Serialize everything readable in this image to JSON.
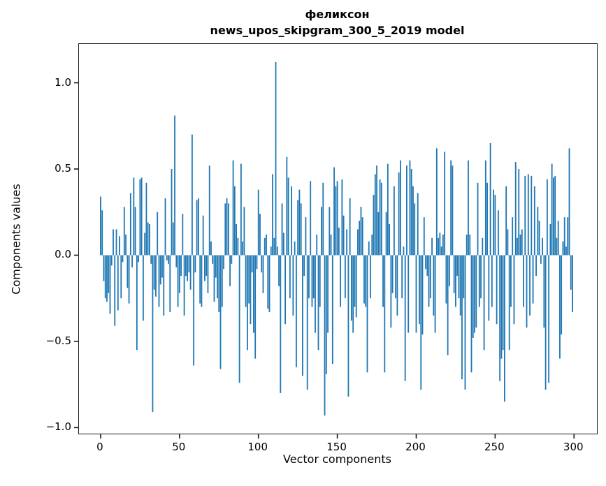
{
  "figure": {
    "background": "#ffffff",
    "frame_color": "#1a1a1a",
    "text_color": "#000000"
  },
  "chart_data": {
    "type": "bar",
    "title": "феликсон",
    "subtitle": "news_upos_skipgram_300_5_2019 model",
    "xlabel": "Vector components",
    "ylabel": "Components values",
    "bar_color": "#1f77b4",
    "grid": false,
    "legend_position": "none",
    "xlim": [
      -13.7,
      314.5
    ],
    "ylim": [
      -1.035,
      1.225
    ],
    "xticks": [
      0,
      50,
      100,
      150,
      200,
      250,
      300
    ],
    "xtick_labels": [
      "0",
      "50",
      "100",
      "150",
      "200",
      "250",
      "300"
    ],
    "yticks": [
      1.0,
      0.5,
      0.0,
      -0.5,
      -1.0
    ],
    "ytick_labels": [
      "1.0",
      "0.5",
      "0.0",
      "−0.5",
      "−1.0"
    ],
    "bar_width_data_units": 0.8,
    "values": [
      0.34,
      0.26,
      -0.15,
      -0.25,
      -0.27,
      -0.22,
      -0.34,
      -0.06,
      0.15,
      -0.41,
      0.15,
      -0.32,
      0.11,
      -0.25,
      -0.04,
      0.28,
      0.12,
      -0.19,
      -0.28,
      0.36,
      -0.07,
      0.45,
      0.28,
      -0.55,
      -0.04,
      0.44,
      0.45,
      -0.38,
      0.13,
      0.42,
      0.19,
      0.18,
      -0.05,
      -0.91,
      -0.2,
      -0.24,
      0.25,
      -0.3,
      -0.17,
      -0.13,
      -0.35,
      0.33,
      -0.03,
      -0.05,
      -0.33,
      0.5,
      0.19,
      0.81,
      -0.07,
      -0.3,
      -0.22,
      -0.12,
      0.24,
      -0.35,
      -0.12,
      -0.15,
      -0.1,
      -0.2,
      0.7,
      -0.64,
      -0.1,
      0.32,
      0.33,
      -0.28,
      -0.3,
      0.23,
      -0.15,
      -0.12,
      -0.22,
      0.52,
      0.08,
      -0.05,
      -0.27,
      -0.13,
      -0.25,
      -0.33,
      -0.66,
      -0.3,
      -0.08,
      0.3,
      0.33,
      0.3,
      -0.18,
      -0.05,
      0.55,
      0.4,
      0.18,
      0.1,
      -0.74,
      0.53,
      0.08,
      0.28,
      -0.3,
      -0.55,
      -0.28,
      -0.4,
      -0.1,
      -0.45,
      -0.6,
      -0.08,
      0.38,
      0.24,
      -0.1,
      -0.22,
      0.1,
      0.12,
      -0.31,
      -0.33,
      0.05,
      0.47,
      0.1,
      1.12,
      0.05,
      -0.18,
      -0.8,
      0.3,
      0.13,
      -0.4,
      0.57,
      0.45,
      -0.25,
      0.4,
      -0.35,
      0.08,
      -0.65,
      0.32,
      0.38,
      0.3,
      -0.7,
      -0.12,
      0.22,
      -0.78,
      -0.25,
      0.43,
      -0.3,
      -0.25,
      -0.45,
      0.12,
      -0.55,
      -0.3,
      0.28,
      0.42,
      -0.93,
      -0.69,
      -0.45,
      0.28,
      0.12,
      -0.63,
      0.51,
      0.4,
      0.43,
      0.16,
      -0.3,
      0.44,
      0.23,
      -0.25,
      0.15,
      -0.82,
      0.33,
      -0.38,
      -0.45,
      -0.3,
      -0.36,
      0.15,
      0.2,
      0.28,
      0.22,
      -0.28,
      -0.3,
      -0.68,
      0.08,
      -0.25,
      0.12,
      0.35,
      0.47,
      0.52,
      0.25,
      0.44,
      0.42,
      -0.3,
      -0.68,
      0.25,
      0.53,
      0.18,
      -0.42,
      -0.22,
      0.4,
      -0.25,
      -0.35,
      0.48,
      0.55,
      -0.25,
      0.05,
      -0.73,
      0.52,
      -0.45,
      0.55,
      0.5,
      0.4,
      0.3,
      -0.45,
      0.36,
      -0.4,
      -0.78,
      -0.46,
      0.22,
      -0.08,
      -0.12,
      -0.3,
      -0.25,
      0.1,
      -0.35,
      -0.45,
      0.62,
      0.1,
      0.13,
      0.05,
      0.12,
      0.6,
      -0.28,
      -0.58,
      -0.18,
      0.55,
      0.52,
      -0.22,
      -0.3,
      -0.12,
      -0.25,
      -0.35,
      -0.72,
      -0.25,
      -0.78,
      0.12,
      0.55,
      0.12,
      -0.68,
      -0.48,
      -0.45,
      -0.42,
      0.42,
      -0.3,
      -0.25,
      0.1,
      -0.55,
      0.55,
      0.42,
      -0.38,
      0.65,
      -0.3,
      0.38,
      0.35,
      -0.4,
      0.26,
      -0.73,
      -0.6,
      -0.55,
      -0.85,
      0.4,
      0.15,
      -0.55,
      -0.3,
      0.22,
      -0.4,
      0.54,
      0.1,
      0.5,
      0.12,
      0.15,
      -0.3,
      0.46,
      -0.42,
      0.47,
      -0.35,
      0.46,
      -0.28,
      0.4,
      -0.12,
      0.28,
      0.2,
      -0.05,
      0.1,
      -0.42,
      -0.78,
      0.44,
      -0.74,
      0.18,
      0.53,
      0.45,
      0.46,
      0.1,
      0.2,
      -0.6,
      -0.46,
      0.08,
      0.22,
      0.05,
      0.22,
      0.62,
      -0.2,
      -0.33
    ]
  }
}
